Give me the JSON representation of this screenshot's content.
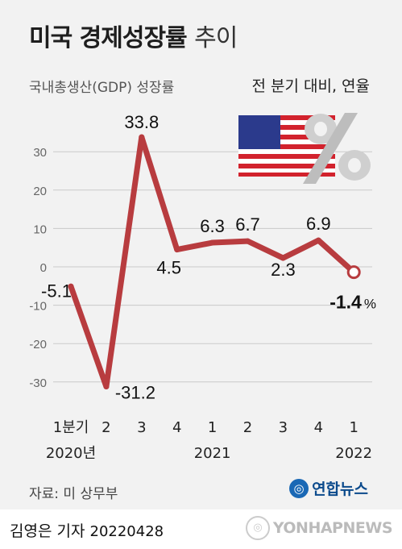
{
  "title_bold": "미국 경제성장률",
  "title_light": "추이",
  "subtitle": "국내총생산(GDP) 성장률",
  "unit_note": "전 분기 대비, 연율",
  "source": "자료: 미 상무부",
  "logo_text": "연합뉴스",
  "reporter": "김영은 기자",
  "date": "20220428",
  "watermark": "YONHAPNEWS",
  "colors": {
    "line": "#b83c3f",
    "grid": "#c9c9c9",
    "background": "#f2f2f2"
  },
  "chart_data": {
    "type": "line",
    "categories": [
      "1분기",
      "2",
      "3",
      "4",
      "1",
      "2",
      "3",
      "4",
      "1"
    ],
    "year_labels": [
      {
        "label": "2020년",
        "index": 0
      },
      {
        "label": "2021",
        "index": 4
      },
      {
        "label": "2022",
        "index": 8
      }
    ],
    "series": [
      {
        "values": [
          -5.1,
          -31.2,
          33.8,
          4.5,
          6.3,
          6.7,
          2.3,
          6.9,
          -1.4
        ]
      }
    ],
    "data_labels": [
      "-5.1",
      "-31.2",
      "33.8",
      "4.5",
      "6.3",
      "6.7",
      "2.3",
      "6.9",
      "-1.4"
    ],
    "last_label_unit": "%",
    "yticks": [
      30,
      20,
      10,
      0,
      -10,
      -20,
      -30
    ],
    "ylim": [
      -33,
      38
    ],
    "grid": true
  }
}
